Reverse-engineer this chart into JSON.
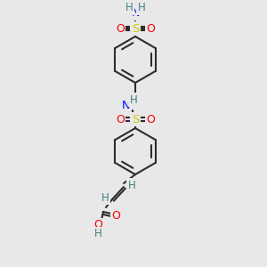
{
  "bg_color": "#e8e8e8",
  "bond_color": "#2d2d2d",
  "colors": {
    "N": "#0000ff",
    "O": "#ff0000",
    "S": "#cccc00",
    "H": "#408080",
    "C": "#2d2d2d"
  }
}
